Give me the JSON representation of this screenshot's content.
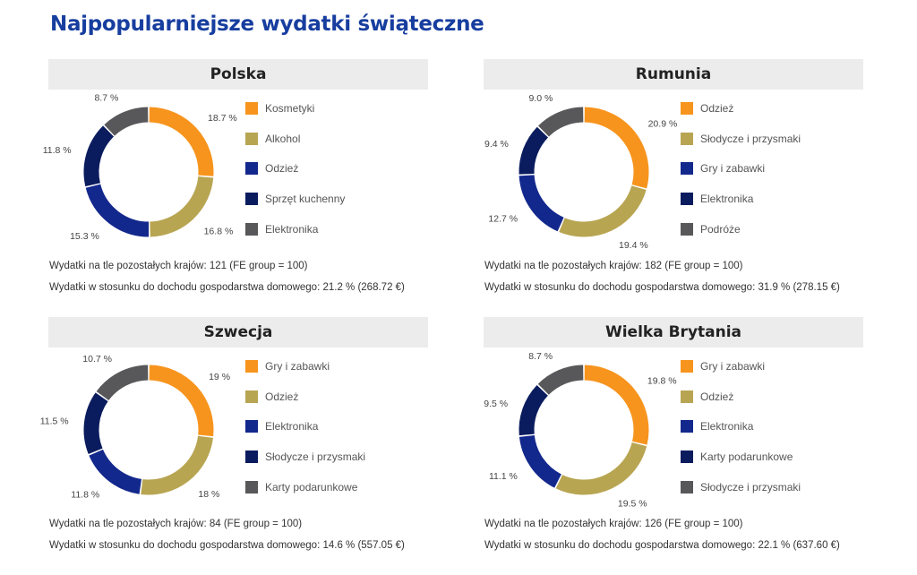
{
  "title": "Najpopularniejsze wydatki świąteczne",
  "colors": [
    "#f7941d",
    "#b8a552",
    "#13288c",
    "#0b1c5e",
    "#58585a"
  ],
  "chart_data": [
    {
      "type": "pie",
      "title": "Polska",
      "categories": [
        "Kosmetyki",
        "Alkohol",
        "Odzież",
        "Sprzęt kuchenny",
        "Elektronika"
      ],
      "values": [
        18.7,
        16.8,
        15.3,
        11.8,
        8.7
      ],
      "value_labels": [
        "18.7 %",
        "16.8 %",
        "15.3 %",
        "11.8 %",
        "8.7 %"
      ],
      "legend": "right",
      "note1": "Wydatki na tle pozostałych krajów: 121 (FE group = 100)",
      "note2": "Wydatki w stosunku do dochodu gospodarstwa domowego: 21.2 % (268.72 €)"
    },
    {
      "type": "pie",
      "title": "Rumunia",
      "categories": [
        "Odzież",
        "Słodycze i przysmaki",
        "Gry i zabawki",
        "Elektronika",
        "Podróże"
      ],
      "values": [
        20.9,
        19.4,
        12.7,
        9.4,
        9.0
      ],
      "value_labels": [
        "20.9 %",
        "19.4 %",
        "12.7 %",
        "9.4 %",
        "9.0 %"
      ],
      "legend": "right",
      "note1": "Wydatki na tle pozostałych krajów: 182 (FE group = 100)",
      "note2": "Wydatki w stosunku do dochodu gospodarstwa domowego: 31.9 % (278.15 €)"
    },
    {
      "type": "pie",
      "title": "Szwecja",
      "categories": [
        "Gry i zabawki",
        "Odzież",
        "Elektronika",
        "Słodycze i przysmaki",
        "Karty podarunkowe"
      ],
      "values": [
        19,
        18,
        11.8,
        11.5,
        10.7
      ],
      "value_labels": [
        "19 %",
        "18 %",
        "11.8 %",
        "11.5 %",
        "10.7 %"
      ],
      "legend": "right",
      "note1": "Wydatki na tle pozostałych krajów: 84 (FE group = 100)",
      "note2": "Wydatki w stosunku do dochodu gospodarstwa domowego: 14.6 % (557.05 €)"
    },
    {
      "type": "pie",
      "title": "Wielka Brytania",
      "categories": [
        "Gry i zabawki",
        "Odzież",
        "Elektronika",
        "Karty podarunkowe",
        "Słodycze i przysmaki"
      ],
      "values": [
        19.8,
        19.5,
        11.1,
        9.5,
        8.7
      ],
      "value_labels": [
        "19.8 %",
        "19.5 %",
        "11.1 %",
        "9.5 %",
        "8.7 %"
      ],
      "legend": "right",
      "note1": "Wydatki na tle pozostałych krajów: 126 (FE group = 100)",
      "note2": "Wydatki w stosunku do dochodu gospodarstwa domowego: 22.1 % (637.60 €)"
    }
  ]
}
